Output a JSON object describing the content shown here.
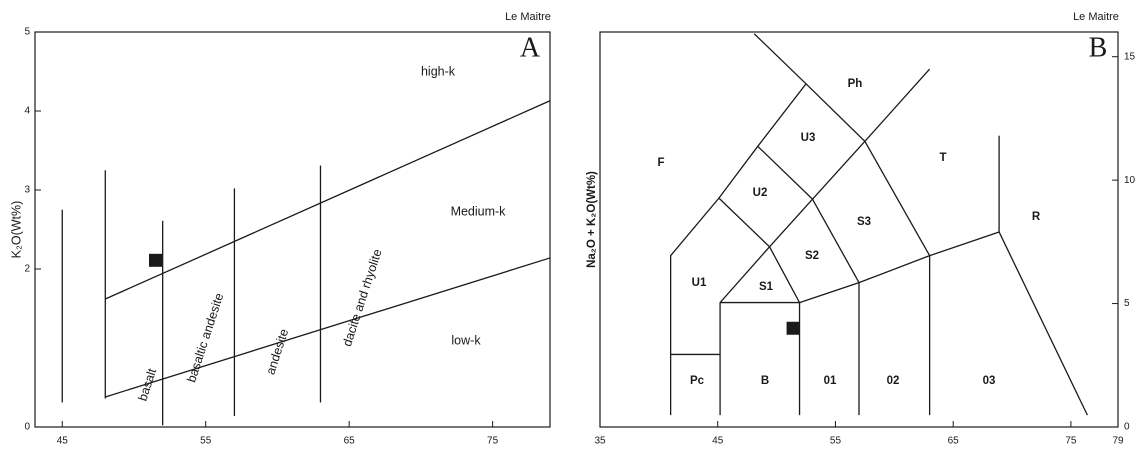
{
  "chart_data": [
    {
      "type": "scatter",
      "title": "A",
      "note": "Le Maitre",
      "y_label": "K₂O(Wt%)",
      "xlim": [
        43.1,
        79
      ],
      "ylim": [
        0,
        5
      ],
      "xticks": [
        45,
        55,
        65,
        75
      ],
      "yticks": [
        0,
        2,
        3,
        4,
        5
      ],
      "yaxis_position": "left",
      "x": [
        51.5
      ],
      "values": [
        2.11
      ],
      "color": "#1a1a1a",
      "boundaries": [
        {
          "x": [
            45,
            45
          ],
          "y": [
            0.31,
            2.75
          ]
        },
        {
          "x": [
            48,
            48
          ],
          "y": [
            0.36,
            3.25
          ]
        },
        {
          "x": [
            52,
            52
          ],
          "y": [
            0.02,
            2.61
          ]
        },
        {
          "x": [
            57,
            57
          ],
          "y": [
            0.14,
            3.02
          ]
        },
        {
          "x": [
            63,
            63
          ],
          "y": [
            0.31,
            3.31
          ]
        },
        {
          "x": [
            48,
            79
          ],
          "y": [
            1.62,
            4.13
          ]
        },
        {
          "x": [
            48,
            79
          ],
          "y": [
            0.38,
            2.14
          ]
        }
      ],
      "annotations": [
        "high-k",
        "Medium-k",
        "low-k",
        "basalt",
        "basaltic andesite",
        "andesite",
        "dacite and rhyolite"
      ]
    },
    {
      "type": "scatter",
      "title": "B",
      "note": "Le Maitre",
      "y_label": "Na₂O + K₂O(Wt%)",
      "xlim": [
        35,
        79
      ],
      "ylim": [
        0,
        16
      ],
      "xticks": [
        35,
        45,
        55,
        65,
        75,
        79
      ],
      "yticks": [
        0,
        5,
        10,
        15
      ],
      "yaxis_position": "right",
      "x": [
        51.4
      ],
      "values": [
        4.0
      ],
      "color": "#1a1a1a",
      "boundaries": [
        {
          "x": [
            41,
            41,
            45.2
          ],
          "y": [
            0.48,
            2.94,
            2.94
          ]
        },
        {
          "x": [
            41,
            41,
            45.1,
            48.4,
            52.5,
            57.5,
            63.0
          ],
          "y": [
            2.94,
            6.94,
            9.27,
            11.37,
            13.9,
            11.57,
            14.5
          ]
        },
        {
          "x": [
            52.5,
            48.1
          ],
          "y": [
            13.9,
            15.93
          ]
        },
        {
          "x": [
            45.1,
            49.4
          ],
          "y": [
            9.27,
            7.3
          ]
        },
        {
          "x": [
            45.2,
            45.2,
            49.4,
            51.95,
            45.2
          ],
          "y": [
            0.48,
            5.04,
            7.3,
            5.04,
            5.04
          ]
        },
        {
          "x": [
            48.4,
            53.05,
            49.4
          ],
          "y": [
            11.37,
            9.23,
            7.3
          ]
        },
        {
          "x": [
            53.05,
            57.5
          ],
          "y": [
            9.23,
            11.57
          ]
        },
        {
          "x": [
            51.95,
            57.0,
            63.0,
            68.9
          ],
          "y": [
            5.04,
            5.85,
            6.94,
            7.9
          ]
        },
        {
          "x": [
            53.05,
            57.0
          ],
          "y": [
            9.23,
            5.85
          ]
        },
        {
          "x": [
            57.5,
            63.0
          ],
          "y": [
            11.57,
            6.94
          ]
        },
        {
          "x": [
            68.9,
            68.9
          ],
          "y": [
            7.9,
            11.8
          ]
        },
        {
          "x": [
            68.9,
            76.4
          ],
          "y": [
            7.9,
            0.48
          ]
        },
        {
          "x": [
            51.95,
            51.95
          ],
          "y": [
            5.04,
            0.48
          ]
        },
        {
          "x": [
            57.0,
            57.0
          ],
          "y": [
            5.85,
            0.48
          ]
        },
        {
          "x": [
            63.0,
            63.0
          ],
          "y": [
            6.94,
            0.48
          ]
        }
      ],
      "annotations": [
        "F",
        "Ph",
        "U3",
        "T",
        "U2",
        "S3",
        "R",
        "U1",
        "S2",
        "S1",
        "Pc",
        "B",
        "01",
        "02",
        "03"
      ]
    }
  ]
}
